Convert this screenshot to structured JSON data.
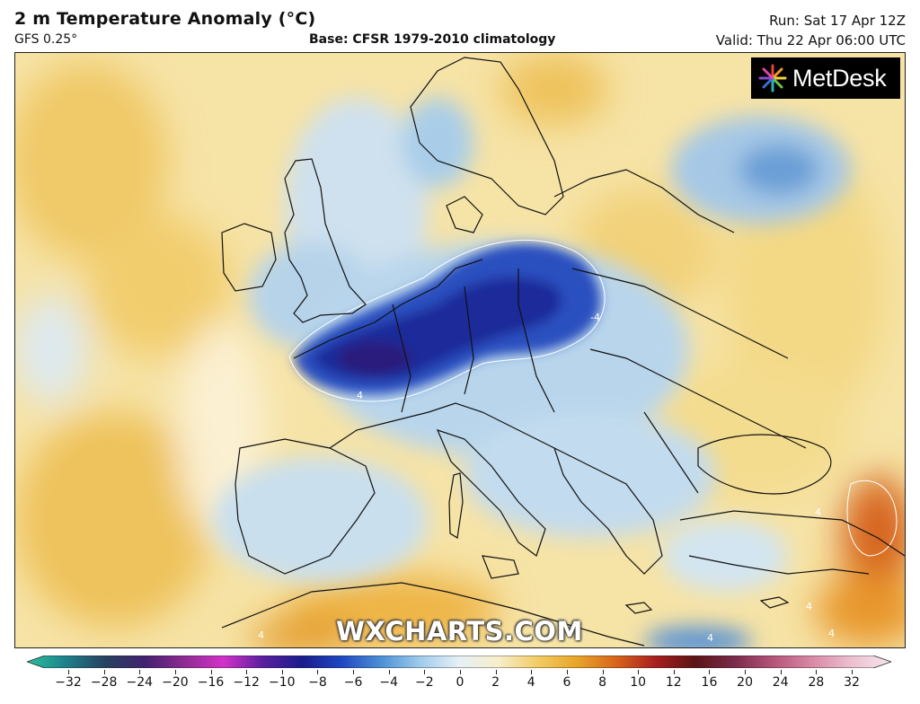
{
  "header": {
    "title": "2 m Temperature Anomaly (°C)",
    "model": "GFS 0.25°",
    "base": "Base: CFSR 1979-2010 climatology",
    "run": "Run: Sat 17 Apr 12Z",
    "valid": "Valid: Thu 22 Apr 06:00 UTC"
  },
  "logo": {
    "text": "MetDesk"
  },
  "watermark": "WXCHARTS.COM",
  "contour_labels": [
    "4",
    "4",
    "4",
    "4",
    "-4",
    "4",
    "4"
  ],
  "colorbar": {
    "unit": "°C",
    "ticks": [
      "−32",
      "−28",
      "−24",
      "−20",
      "−16",
      "−12",
      "−10",
      "−8",
      "−6",
      "−4",
      "−2",
      "0",
      "2",
      "4",
      "6",
      "8",
      "10",
      "12",
      "16",
      "20",
      "24",
      "28",
      "32"
    ],
    "colors": [
      "#2bc2a0",
      "#1d7f8a",
      "#27415f",
      "#41226f",
      "#8e2a92",
      "#d232c8",
      "#5a1fa0",
      "#1a1c8c",
      "#1f47c0",
      "#4b8fd6",
      "#9fcbeb",
      "#e6f0f7",
      "#f7eecb",
      "#f2cc63",
      "#e7a52a",
      "#d8641a",
      "#a81f1f",
      "#5c1414",
      "#7a2a4a",
      "#b5547a",
      "#d88aa6",
      "#edc0d0",
      "#f7e6ee"
    ]
  }
}
